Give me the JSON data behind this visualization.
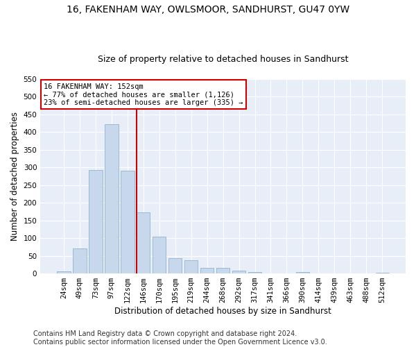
{
  "title": "16, FAKENHAM WAY, OWLSMOOR, SANDHURST, GU47 0YW",
  "subtitle": "Size of property relative to detached houses in Sandhurst",
  "xlabel": "Distribution of detached houses by size in Sandhurst",
  "ylabel": "Number of detached properties",
  "categories": [
    "24sqm",
    "49sqm",
    "73sqm",
    "97sqm",
    "122sqm",
    "146sqm",
    "170sqm",
    "195sqm",
    "219sqm",
    "244sqm",
    "268sqm",
    "292sqm",
    "317sqm",
    "341sqm",
    "366sqm",
    "390sqm",
    "414sqm",
    "439sqm",
    "463sqm",
    "488sqm",
    "512sqm"
  ],
  "values": [
    7,
    70,
    293,
    422,
    290,
    172,
    104,
    43,
    38,
    15,
    15,
    8,
    4,
    1,
    0,
    4,
    0,
    0,
    1,
    0,
    2
  ],
  "bar_color": "#c8d8ec",
  "bar_edge_color": "#8eb4d0",
  "vline_color": "#cc0000",
  "annotation_text": "16 FAKENHAM WAY: 152sqm\n← 77% of detached houses are smaller (1,126)\n23% of semi-detached houses are larger (335) →",
  "annotation_box_color": "#ffffff",
  "annotation_box_edge": "#cc0000",
  "ylim": [
    0,
    550
  ],
  "yticks": [
    0,
    50,
    100,
    150,
    200,
    250,
    300,
    350,
    400,
    450,
    500,
    550
  ],
  "bg_color": "#e8eef8",
  "footnote": "Contains HM Land Registry data © Crown copyright and database right 2024.\nContains public sector information licensed under the Open Government Licence v3.0.",
  "title_fontsize": 10,
  "subtitle_fontsize": 9,
  "xlabel_fontsize": 8.5,
  "ylabel_fontsize": 8.5,
  "tick_fontsize": 7.5,
  "footnote_fontsize": 7,
  "vline_index": 5
}
